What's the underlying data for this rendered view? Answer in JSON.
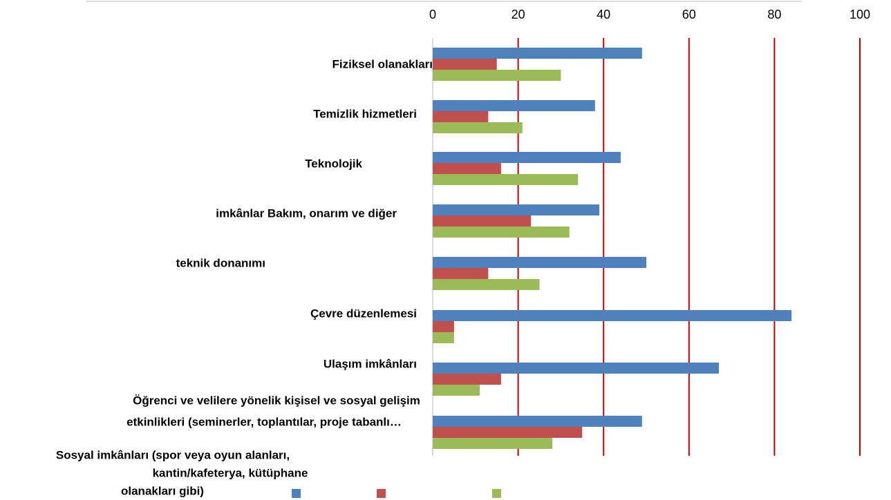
{
  "chart_data": {
    "type": "bar",
    "orientation": "horizontal",
    "categories": [
      "Fiziksel olanakları",
      "Temizlik hizmetleri",
      "Teknolojik",
      "imkânlar Bakım, onarım ve diğer",
      "teknik donanımı",
      "Çevre düzenlemesi",
      "Ulaşım imkânları",
      [
        "Öğrenci ve velilere yönelik kişisel ve sosyal gelişim",
        "etkinlikleri (seminerler, toplantılar, proje tabanlı…"
      ]
    ],
    "extra_label": [
      "Sosyal imkânları (spor veya oyun alanları,",
      "kantin/kafeterya, kütüphane",
      "olanakları gibi)"
    ],
    "series": [
      {
        "color": "#4f81bd",
        "values": [
          49,
          38,
          44,
          39,
          50,
          84,
          67,
          49
        ]
      },
      {
        "color": "#c0504d",
        "values": [
          15,
          13,
          16,
          23,
          13,
          5,
          16,
          35
        ]
      },
      {
        "color": "#9bbb59",
        "values": [
          30,
          21,
          34,
          32,
          25,
          5,
          11,
          28
        ]
      }
    ],
    "xlim": [
      0,
      100
    ],
    "xticks": [
      0,
      20,
      40,
      60,
      80,
      100
    ],
    "grid": true,
    "grid_color": "#c00000"
  }
}
